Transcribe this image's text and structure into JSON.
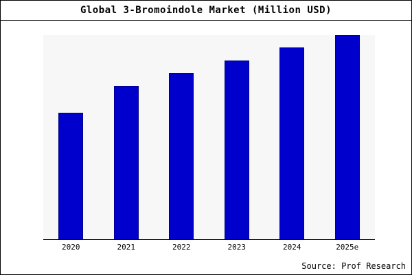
{
  "chart_data": {
    "type": "bar",
    "title": "Global 3-Bromoindole Market (Million USD)",
    "categories": [
      "2020",
      "2021",
      "2022",
      "2023",
      "2024",
      "2025e"
    ],
    "values": [
      62,
      75,
      81.5,
      87.5,
      94,
      100
    ],
    "ylim": [
      0,
      100
    ],
    "xlabel": "",
    "ylabel": "",
    "grid": false,
    "legend": "none",
    "bar_color": "#0000CD",
    "bar_border_color": "#00008B",
    "plot_bg": "#f7f7f7"
  },
  "footer": {
    "source": "Source: Prof Research"
  }
}
